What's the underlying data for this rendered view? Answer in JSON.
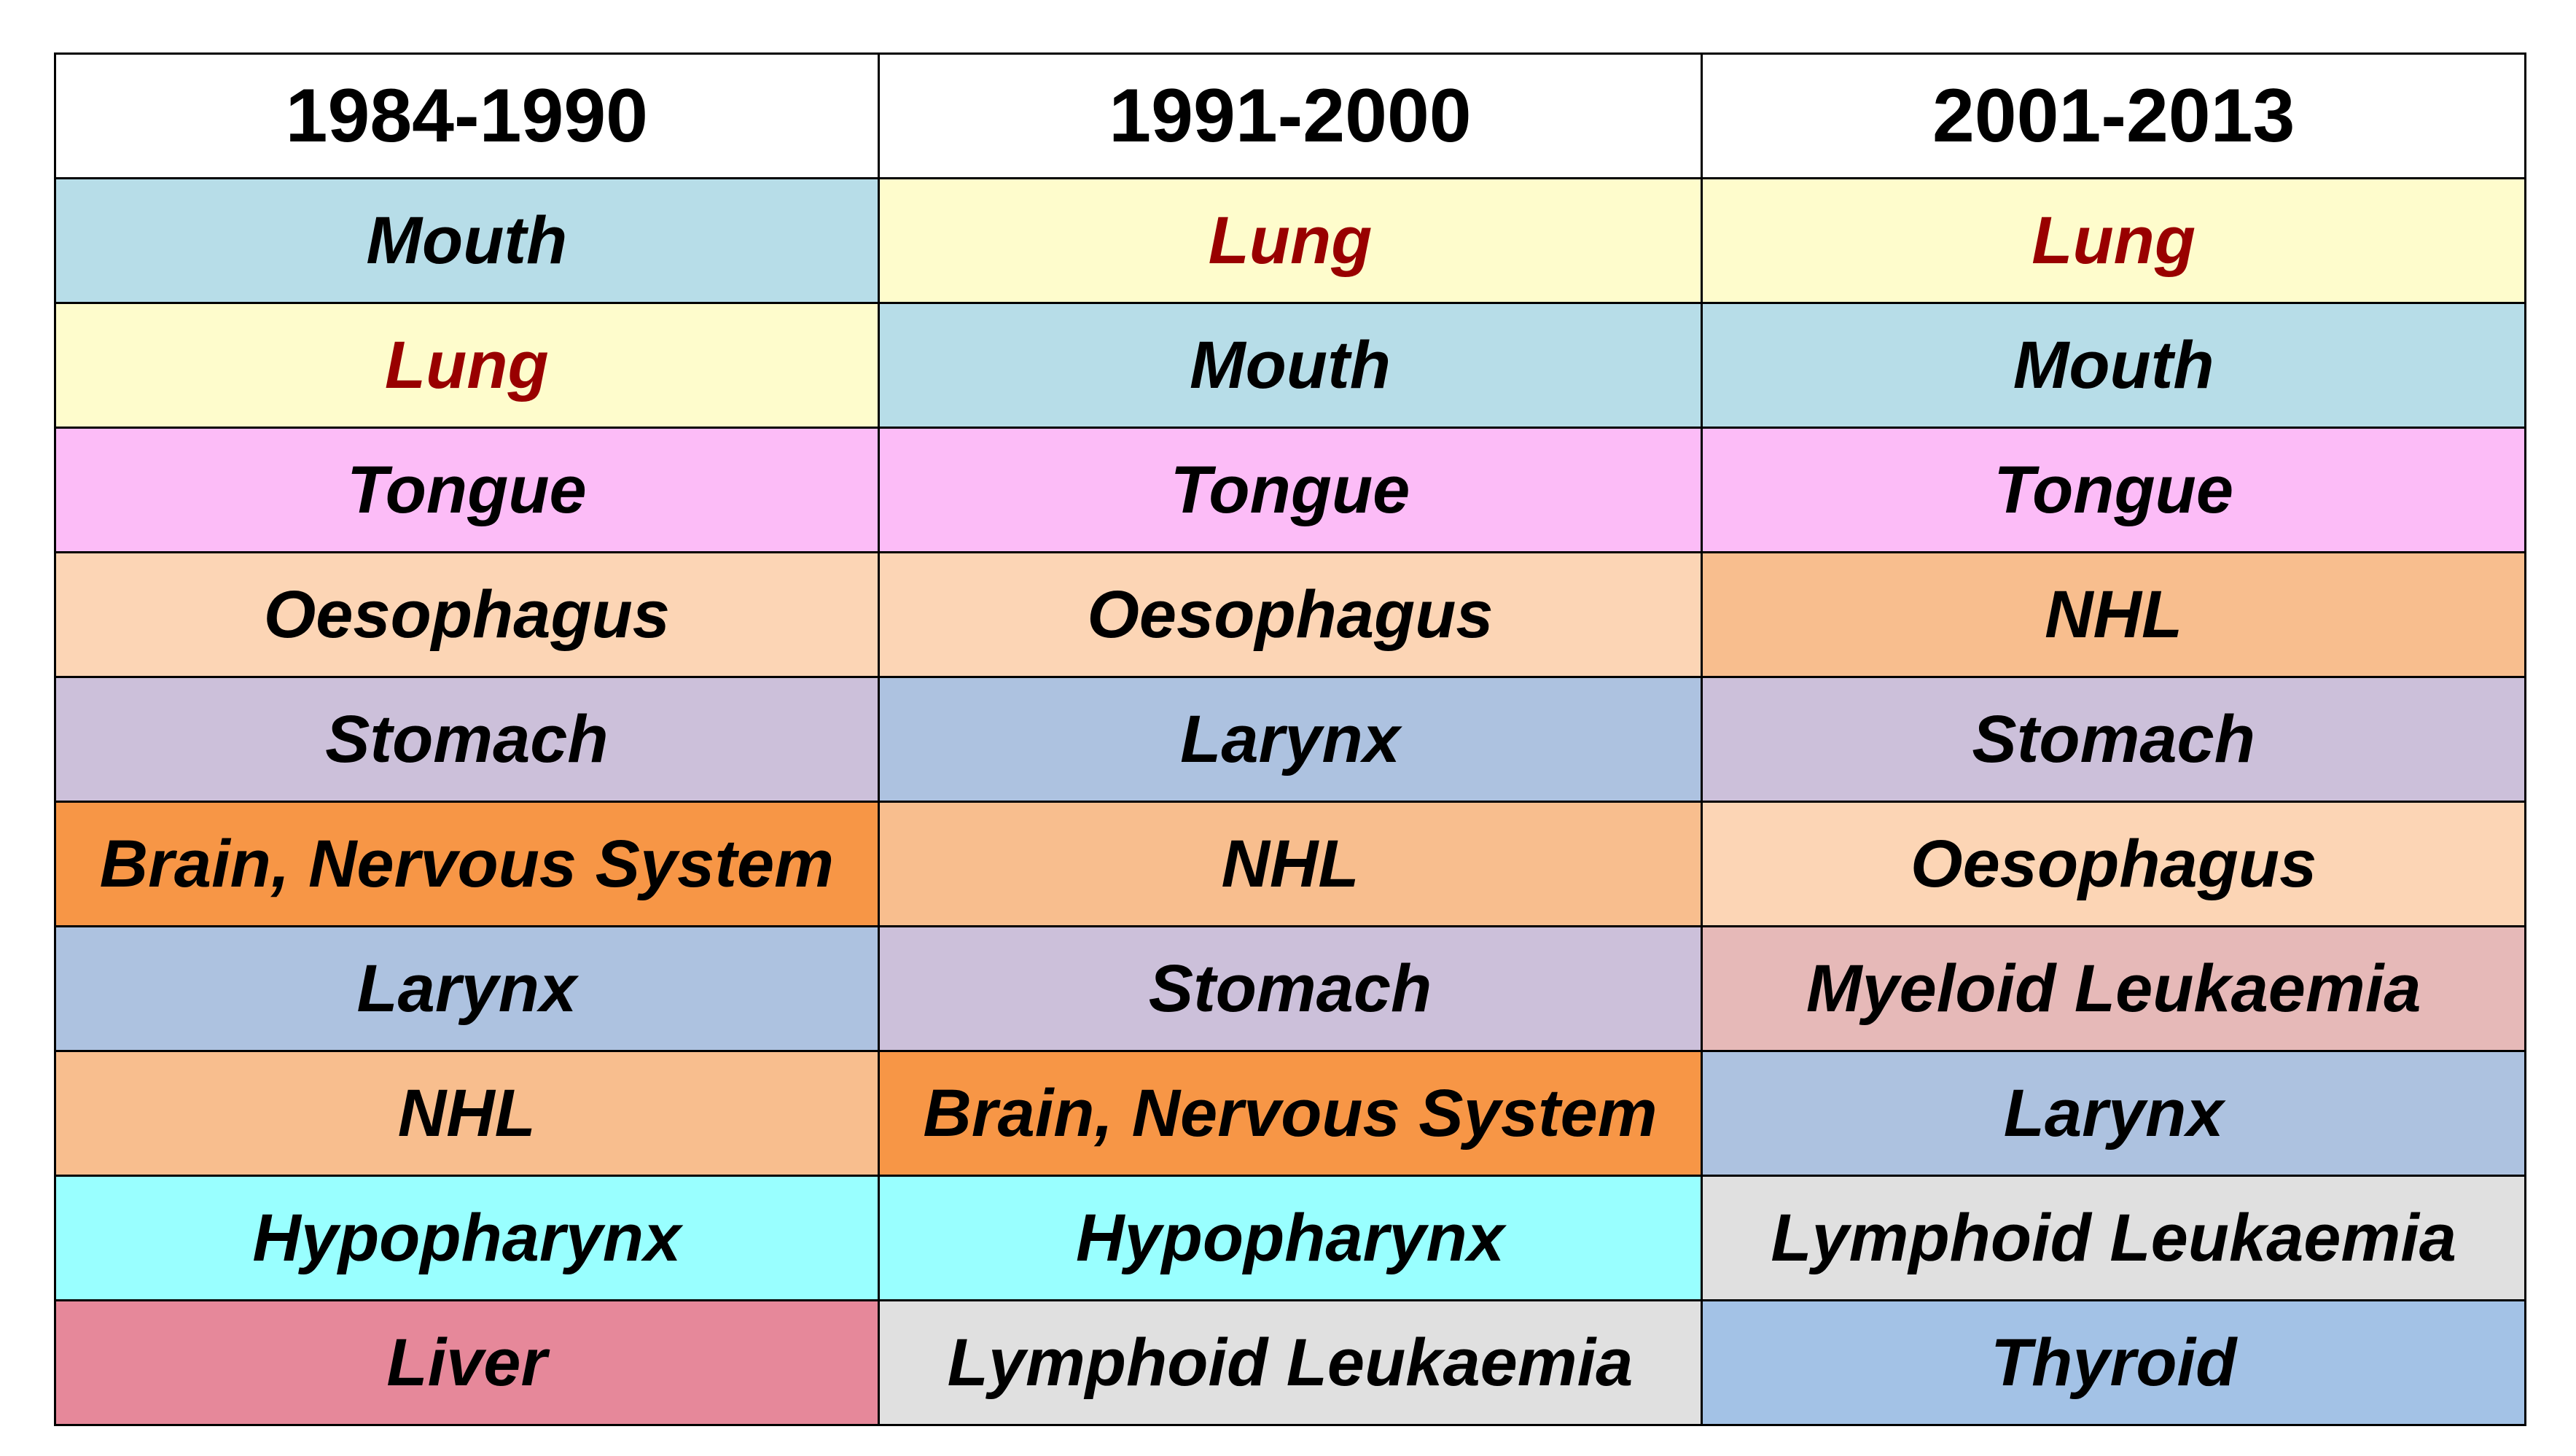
{
  "chart_data": {
    "type": "table",
    "columns": [
      "1984-1990",
      "1991-2000",
      "2001-2013"
    ],
    "rows": [
      [
        "Mouth",
        "Lung",
        "Lung"
      ],
      [
        "Lung",
        "Mouth",
        "Mouth"
      ],
      [
        "Tongue",
        "Tongue",
        "Tongue"
      ],
      [
        "Oesophagus",
        "Oesophagus",
        "NHL"
      ],
      [
        "Stomach",
        "Larynx",
        "Stomach"
      ],
      [
        "Brain, Nervous System",
        "NHL",
        "Oesophagus"
      ],
      [
        "Larynx",
        "Stomach",
        "Myeloid Leukaemia"
      ],
      [
        "NHL",
        "Brain, Nervous System",
        "Larynx"
      ],
      [
        "Hypopharynx",
        "Hypopharynx",
        "Lymphoid Leukaemia"
      ],
      [
        "Liver",
        "Lymphoid Leukaemia",
        "Thyroid"
      ]
    ],
    "category_colors": {
      "Mouth": "#b7dde8",
      "Lung": "#fefccc",
      "Tongue": "#fcbcf7",
      "Oesophagus": "#fcd5b5",
      "Stomach": "#ccc0da",
      "Brain, Nervous System": "#f79646",
      "Larynx": "#adc2e0",
      "NHL": "#f8be8e",
      "Hypopharynx": "#99ffff",
      "Liver": "#e6889a",
      "Lymphoid Leukaemia": "#e0e0e0",
      "Myeloid Leukaemia": "#e6b9b8",
      "Thyroid": "#a3c2e6"
    },
    "highlight_text_color": "#990000",
    "highlight_categories": [
      "Lung"
    ]
  }
}
